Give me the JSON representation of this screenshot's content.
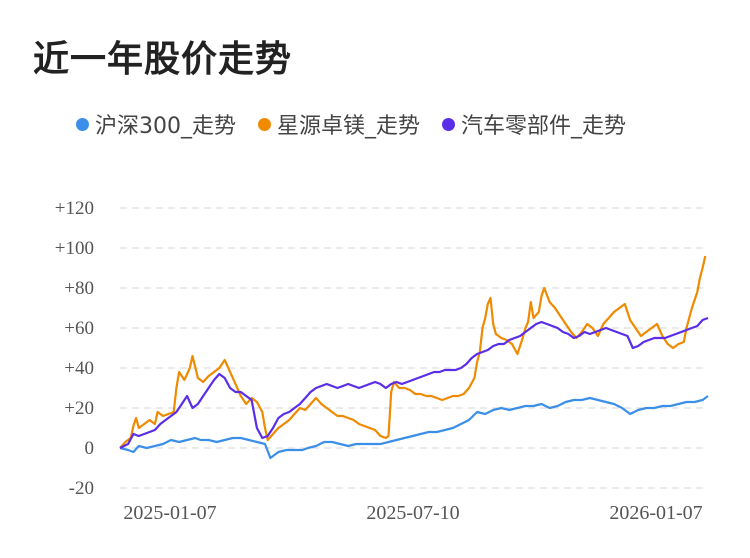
{
  "title": "近一年股价走势",
  "chart_data": {
    "type": "line",
    "title": "近一年股价走势",
    "x_ticks": [
      "2025-01-07",
      "2025-07-10",
      "2026-01-07"
    ],
    "y_ticks": [
      "+120",
      "+100",
      "+80",
      "+60",
      "+40",
      "+20",
      "0",
      "-20"
    ],
    "y_tick_values": [
      120,
      100,
      80,
      60,
      40,
      20,
      0,
      -20
    ],
    "ylim": [
      -20,
      120
    ],
    "grid": true,
    "legend_position": "top",
    "series": [
      {
        "name": "沪深300_走势",
        "color": "#3b8fe8",
        "points": [
          [
            0,
            0
          ],
          [
            3,
            -1
          ],
          [
            5,
            -2
          ],
          [
            7,
            1
          ],
          [
            10,
            0
          ],
          [
            13,
            1
          ],
          [
            16,
            2
          ],
          [
            19,
            4
          ],
          [
            22,
            3
          ],
          [
            25,
            4
          ],
          [
            28,
            5
          ],
          [
            30,
            4
          ],
          [
            33,
            4
          ],
          [
            36,
            3
          ],
          [
            39,
            4
          ],
          [
            42,
            5
          ],
          [
            45,
            5
          ],
          [
            48,
            4
          ],
          [
            51,
            3
          ],
          [
            54,
            2
          ],
          [
            56,
            -5
          ],
          [
            59,
            -2
          ],
          [
            62,
            -1
          ],
          [
            65,
            -1
          ],
          [
            68,
            -1
          ],
          [
            70,
            0
          ],
          [
            73,
            1
          ],
          [
            76,
            3
          ],
          [
            79,
            3
          ],
          [
            82,
            2
          ],
          [
            85,
            1
          ],
          [
            88,
            2
          ],
          [
            91,
            2
          ],
          [
            94,
            2
          ],
          [
            97,
            2
          ],
          [
            100,
            3
          ],
          [
            103,
            4
          ],
          [
            106,
            5
          ],
          [
            109,
            6
          ],
          [
            112,
            7
          ],
          [
            115,
            8
          ],
          [
            118,
            8
          ],
          [
            121,
            9
          ],
          [
            124,
            10
          ],
          [
            127,
            12
          ],
          [
            130,
            14
          ],
          [
            133,
            18
          ],
          [
            136,
            17
          ],
          [
            139,
            19
          ],
          [
            142,
            20
          ],
          [
            145,
            19
          ],
          [
            148,
            20
          ],
          [
            151,
            21
          ],
          [
            154,
            21
          ],
          [
            157,
            22
          ],
          [
            160,
            20
          ],
          [
            163,
            21
          ],
          [
            166,
            23
          ],
          [
            169,
            24
          ],
          [
            172,
            24
          ],
          [
            175,
            25
          ],
          [
            178,
            24
          ],
          [
            181,
            23
          ],
          [
            184,
            22
          ],
          [
            187,
            20
          ],
          [
            190,
            17
          ],
          [
            193,
            19
          ],
          [
            196,
            20
          ],
          [
            199,
            20
          ],
          [
            202,
            21
          ],
          [
            205,
            21
          ],
          [
            208,
            22
          ],
          [
            211,
            23
          ],
          [
            214,
            23
          ],
          [
            217,
            24
          ],
          [
            219,
            26
          ]
        ]
      },
      {
        "name": "星源卓镁_走势",
        "color": "#f08a00",
        "points": [
          [
            0,
            0
          ],
          [
            2,
            3
          ],
          [
            4,
            5
          ],
          [
            5,
            11
          ],
          [
            6,
            15
          ],
          [
            7,
            10
          ],
          [
            9,
            12
          ],
          [
            11,
            14
          ],
          [
            13,
            12
          ],
          [
            14,
            18
          ],
          [
            16,
            16
          ],
          [
            18,
            17
          ],
          [
            20,
            18
          ],
          [
            21,
            30
          ],
          [
            22,
            38
          ],
          [
            24,
            34
          ],
          [
            26,
            40
          ],
          [
            27,
            46
          ],
          [
            29,
            35
          ],
          [
            31,
            33
          ],
          [
            33,
            36
          ],
          [
            35,
            38
          ],
          [
            37,
            40
          ],
          [
            39,
            44
          ],
          [
            41,
            38
          ],
          [
            43,
            32
          ],
          [
            45,
            26
          ],
          [
            47,
            22
          ],
          [
            49,
            25
          ],
          [
            51,
            23
          ],
          [
            53,
            18
          ],
          [
            54,
            10
          ],
          [
            55,
            4
          ],
          [
            57,
            7
          ],
          [
            59,
            10
          ],
          [
            61,
            12
          ],
          [
            63,
            14
          ],
          [
            65,
            17
          ],
          [
            67,
            20
          ],
          [
            69,
            19
          ],
          [
            71,
            22
          ],
          [
            73,
            25
          ],
          [
            75,
            22
          ],
          [
            77,
            20
          ],
          [
            79,
            18
          ],
          [
            81,
            16
          ],
          [
            83,
            16
          ],
          [
            85,
            15
          ],
          [
            87,
            14
          ],
          [
            89,
            12
          ],
          [
            91,
            11
          ],
          [
            93,
            10
          ],
          [
            95,
            9
          ],
          [
            97,
            6
          ],
          [
            99,
            5
          ],
          [
            100,
            6
          ],
          [
            101,
            28
          ],
          [
            102,
            33
          ],
          [
            104,
            30
          ],
          [
            106,
            30
          ],
          [
            108,
            29
          ],
          [
            110,
            27
          ],
          [
            112,
            27
          ],
          [
            114,
            26
          ],
          [
            116,
            26
          ],
          [
            118,
            25
          ],
          [
            120,
            24
          ],
          [
            122,
            25
          ],
          [
            124,
            26
          ],
          [
            126,
            26
          ],
          [
            128,
            27
          ],
          [
            130,
            30
          ],
          [
            132,
            35
          ],
          [
            133,
            43
          ],
          [
            134,
            48
          ],
          [
            135,
            60
          ],
          [
            136,
            65
          ],
          [
            137,
            72
          ],
          [
            138,
            75
          ],
          [
            139,
            62
          ],
          [
            140,
            57
          ],
          [
            142,
            55
          ],
          [
            144,
            54
          ],
          [
            146,
            52
          ],
          [
            148,
            47
          ],
          [
            150,
            55
          ],
          [
            151,
            60
          ],
          [
            152,
            63
          ],
          [
            153,
            73
          ],
          [
            154,
            65
          ],
          [
            156,
            68
          ],
          [
            157,
            76
          ],
          [
            158,
            80
          ],
          [
            160,
            73
          ],
          [
            162,
            70
          ],
          [
            164,
            66
          ],
          [
            166,
            62
          ],
          [
            168,
            58
          ],
          [
            170,
            55
          ],
          [
            172,
            58
          ],
          [
            174,
            62
          ],
          [
            176,
            60
          ],
          [
            178,
            56
          ],
          [
            180,
            62
          ],
          [
            182,
            65
          ],
          [
            184,
            68
          ],
          [
            186,
            70
          ],
          [
            188,
            72
          ],
          [
            190,
            64
          ],
          [
            192,
            60
          ],
          [
            194,
            56
          ],
          [
            196,
            58
          ],
          [
            198,
            60
          ],
          [
            200,
            62
          ],
          [
            202,
            56
          ],
          [
            204,
            52
          ],
          [
            206,
            50
          ],
          [
            208,
            52
          ],
          [
            210,
            53
          ],
          [
            211,
            60
          ],
          [
            212,
            65
          ],
          [
            213,
            70
          ],
          [
            214,
            74
          ],
          [
            215,
            78
          ],
          [
            216,
            85
          ],
          [
            217,
            90
          ],
          [
            218,
            96
          ]
        ]
      },
      {
        "name": "汽车零部件_走势",
        "color": "#5a2de8",
        "points": [
          [
            0,
            0
          ],
          [
            3,
            2
          ],
          [
            5,
            7
          ],
          [
            7,
            6
          ],
          [
            9,
            7
          ],
          [
            11,
            8
          ],
          [
            13,
            9
          ],
          [
            15,
            12
          ],
          [
            17,
            14
          ],
          [
            19,
            16
          ],
          [
            21,
            18
          ],
          [
            23,
            22
          ],
          [
            25,
            26
          ],
          [
            27,
            20
          ],
          [
            29,
            22
          ],
          [
            31,
            26
          ],
          [
            33,
            30
          ],
          [
            35,
            34
          ],
          [
            37,
            37
          ],
          [
            39,
            35
          ],
          [
            41,
            30
          ],
          [
            43,
            28
          ],
          [
            45,
            28
          ],
          [
            47,
            26
          ],
          [
            49,
            24
          ],
          [
            51,
            10
          ],
          [
            53,
            5
          ],
          [
            55,
            6
          ],
          [
            57,
            10
          ],
          [
            59,
            15
          ],
          [
            61,
            17
          ],
          [
            63,
            18
          ],
          [
            65,
            20
          ],
          [
            67,
            22
          ],
          [
            69,
            25
          ],
          [
            71,
            28
          ],
          [
            73,
            30
          ],
          [
            75,
            31
          ],
          [
            77,
            32
          ],
          [
            79,
            31
          ],
          [
            81,
            30
          ],
          [
            83,
            31
          ],
          [
            85,
            32
          ],
          [
            87,
            31
          ],
          [
            89,
            30
          ],
          [
            91,
            31
          ],
          [
            93,
            32
          ],
          [
            95,
            33
          ],
          [
            97,
            32
          ],
          [
            99,
            30
          ],
          [
            101,
            32
          ],
          [
            103,
            33
          ],
          [
            105,
            32
          ],
          [
            107,
            33
          ],
          [
            109,
            34
          ],
          [
            111,
            35
          ],
          [
            113,
            36
          ],
          [
            115,
            37
          ],
          [
            117,
            38
          ],
          [
            119,
            38
          ],
          [
            121,
            39
          ],
          [
            123,
            39
          ],
          [
            125,
            39
          ],
          [
            127,
            40
          ],
          [
            129,
            42
          ],
          [
            131,
            45
          ],
          [
            133,
            47
          ],
          [
            135,
            48
          ],
          [
            137,
            49
          ],
          [
            139,
            51
          ],
          [
            141,
            52
          ],
          [
            143,
            52
          ],
          [
            145,
            54
          ],
          [
            147,
            55
          ],
          [
            149,
            56
          ],
          [
            151,
            58
          ],
          [
            153,
            60
          ],
          [
            155,
            62
          ],
          [
            157,
            63
          ],
          [
            159,
            62
          ],
          [
            161,
            61
          ],
          [
            163,
            60
          ],
          [
            165,
            58
          ],
          [
            167,
            57
          ],
          [
            169,
            55
          ],
          [
            171,
            56
          ],
          [
            173,
            58
          ],
          [
            175,
            57
          ],
          [
            177,
            58
          ],
          [
            179,
            59
          ],
          [
            181,
            60
          ],
          [
            183,
            59
          ],
          [
            185,
            58
          ],
          [
            187,
            57
          ],
          [
            189,
            56
          ],
          [
            191,
            50
          ],
          [
            193,
            51
          ],
          [
            195,
            53
          ],
          [
            197,
            54
          ],
          [
            199,
            55
          ],
          [
            201,
            55
          ],
          [
            203,
            55
          ],
          [
            205,
            56
          ],
          [
            207,
            57
          ],
          [
            209,
            58
          ],
          [
            211,
            59
          ],
          [
            213,
            60
          ],
          [
            215,
            61
          ],
          [
            217,
            64
          ],
          [
            219,
            65
          ]
        ]
      }
    ]
  }
}
